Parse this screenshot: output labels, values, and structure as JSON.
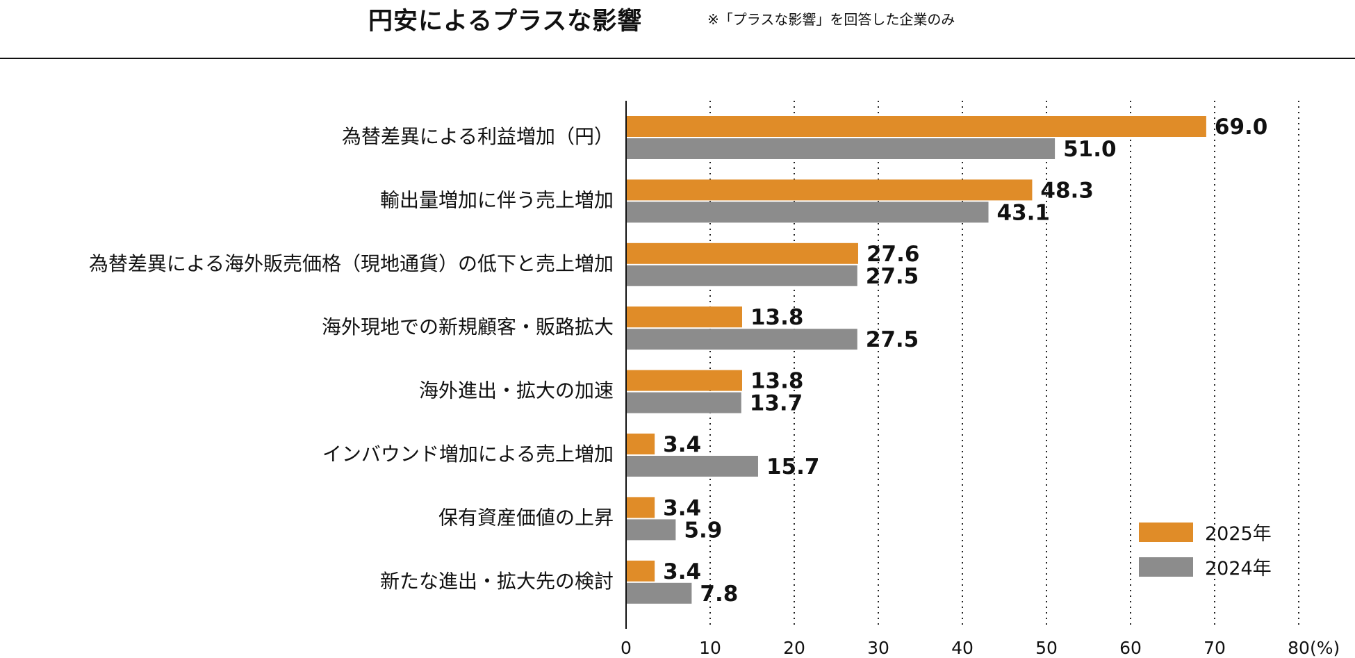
{
  "header": {
    "title": "円安によるプラスな影響",
    "note": "※「プラスな影響」を回答した企業のみ"
  },
  "colors": {
    "s2025": "#E08C28",
    "s2024": "#8C8C8C"
  },
  "chart_data": {
    "type": "bar",
    "orientation": "horizontal",
    "title": "円安によるプラスな影響",
    "subtitle": "※「プラスな影響」を回答した企業のみ",
    "categories": [
      "為替差異による利益増加（円）",
      "輸出量増加に伴う売上増加",
      "為替差異による海外販売価格（現地通貨）の低下と売上増加",
      "海外現地での新規顧客・販路拡大",
      "海外進出・拡大の加速",
      "インバウンド増加による売上増加",
      "保有資産価値の上昇",
      "新たな進出・拡大先の検討"
    ],
    "series": [
      {
        "name": "2025年",
        "values": [
          69.0,
          48.3,
          27.6,
          13.8,
          13.8,
          3.4,
          3.4,
          3.4
        ],
        "labels": [
          "69.0",
          "48.3",
          "27.6",
          "13.8",
          "13.8",
          "3.4",
          "3.4",
          "3.4"
        ]
      },
      {
        "name": "2024年",
        "values": [
          51.0,
          43.1,
          27.5,
          27.5,
          13.7,
          15.7,
          5.9,
          7.8
        ],
        "labels": [
          "51.0",
          "43.1",
          "27.5",
          "27.5",
          "13.7",
          "15.7",
          "5.9",
          "7.8"
        ]
      }
    ],
    "xlim": [
      0,
      80
    ],
    "xticks": [
      0,
      10,
      20,
      30,
      40,
      50,
      60,
      70,
      80
    ],
    "xtick_labels": [
      "0",
      "10",
      "20",
      "30",
      "40",
      "50",
      "60",
      "70",
      "80"
    ],
    "xunit": "(%)",
    "grid": "vertical dotted",
    "legend": "bottom-right"
  }
}
